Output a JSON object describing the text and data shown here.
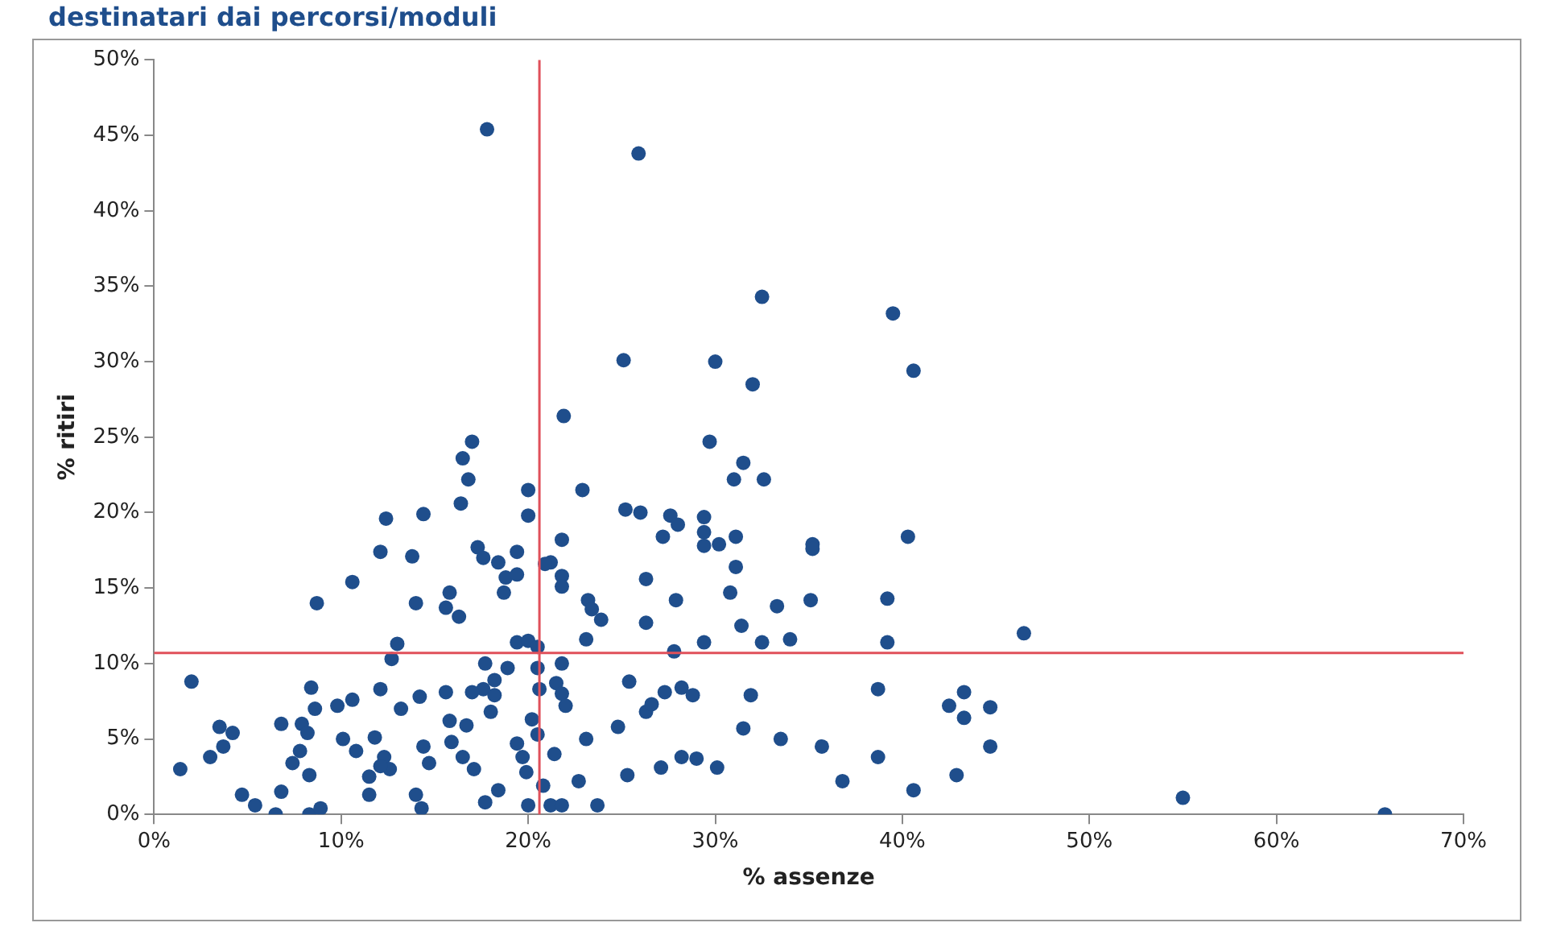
{
  "chart_data": {
    "type": "scatter",
    "title": "destinatari dai percorsi/moduli",
    "xlabel": "% assenze",
    "ylabel": "% ritiri",
    "xlim": [
      0,
      70
    ],
    "xticks": [
      {
        "value": 0,
        "label": "0%"
      },
      {
        "value": 10,
        "label": "10%"
      },
      {
        "value": 20,
        "label": "20%"
      },
      {
        "value": 30,
        "label": "30%"
      },
      {
        "value": 40,
        "label": "40%"
      },
      {
        "value": 50,
        "label": "50%"
      },
      {
        "value": 60,
        "label": "60%"
      },
      {
        "value": 70,
        "label": "70%"
      }
    ],
    "ylim": [
      0,
      50
    ],
    "yticks": [
      {
        "value": 0,
        "label": "0%"
      },
      {
        "value": 5,
        "label": "5%"
      },
      {
        "value": 10,
        "label": "10%"
      },
      {
        "value": 15,
        "label": "15%"
      },
      {
        "value": 20,
        "label": "20%"
      },
      {
        "value": 25,
        "label": "25%"
      },
      {
        "value": 30,
        "label": "30%"
      },
      {
        "value": 35,
        "label": "35%"
      },
      {
        "value": 40,
        "label": "40%"
      },
      {
        "value": 45,
        "label": "45%"
      },
      {
        "value": 50,
        "label": "50%"
      }
    ],
    "grid": false,
    "legend": false,
    "marker": "circle",
    "ref_lines": [
      {
        "axis": "x",
        "value": 20.6,
        "color": "#e0505a"
      },
      {
        "axis": "y",
        "value": 10.7,
        "color": "#e0505a"
      }
    ],
    "series": [
      {
        "color": "#1f4e8c",
        "x": [
          17.8,
          21.9,
          17.0,
          16.5,
          16.8,
          20.0,
          22.9,
          25.9,
          32.5,
          39.5,
          25.1,
          30.0,
          32.0,
          40.6,
          29.7,
          31.5,
          31.0,
          32.6,
          25.2,
          26.0,
          27.6,
          28.0,
          27.2,
          29.4,
          29.4,
          29.4,
          30.2,
          31.1,
          21.8,
          35.2,
          35.2,
          40.3,
          31.1,
          26.3,
          21.2,
          21.8,
          21.8,
          30.8,
          35.1,
          39.2,
          27.9,
          23.2,
          23.4,
          23.9,
          33.3,
          26.3,
          31.4,
          23.1,
          29.4,
          32.5,
          34.0,
          39.2,
          46.5,
          27.8,
          21.8,
          21.5,
          21.8,
          22.0,
          25.4,
          27.3,
          28.2,
          28.8,
          26.3,
          26.6,
          31.9,
          38.7,
          42.5,
          43.3,
          43.3,
          44.7,
          24.8,
          23.1,
          31.5,
          33.5,
          35.7,
          38.7,
          44.7,
          28.2,
          29.0,
          27.1,
          30.1,
          25.3,
          22.7,
          36.8,
          42.9,
          40.6,
          23.7,
          21.2,
          21.8,
          55.0,
          65.8,
          20.0,
          12.4,
          14.4,
          16.4,
          12.1,
          13.8,
          17.3,
          17.6,
          18.4,
          19.4,
          18.8,
          19.4,
          18.7,
          20.9,
          10.6,
          8.7,
          14.0,
          15.8,
          15.6,
          16.3,
          13.0,
          12.7,
          19.4,
          20.0,
          20.5,
          2.0,
          17.7,
          18.2,
          17.6,
          18.2,
          18.0,
          18.9,
          20.5,
          20.6,
          20.2,
          20.5,
          19.4,
          19.7,
          19.9,
          21.4,
          20.0,
          20.8,
          12.1,
          13.2,
          14.2,
          15.6,
          17.0,
          8.4,
          8.6,
          9.8,
          10.6,
          15.8,
          16.7,
          3.5,
          4.2,
          3.7,
          3.0,
          1.4,
          6.8,
          7.9,
          8.2,
          7.8,
          7.4,
          6.8,
          8.3,
          10.1,
          10.8,
          11.8,
          12.3,
          12.6,
          11.5,
          11.5,
          14.4,
          14.7,
          14.0,
          14.3,
          15.9,
          16.5,
          17.1,
          17.7,
          18.4,
          4.7,
          5.4,
          6.5,
          8.3,
          8.9,
          12.1
        ],
        "values": [
          45.4,
          26.4,
          24.7,
          23.6,
          22.2,
          21.5,
          21.5,
          43.8,
          34.3,
          33.2,
          30.1,
          30.0,
          28.5,
          29.4,
          24.7,
          23.3,
          22.2,
          22.2,
          20.2,
          20.0,
          19.8,
          19.2,
          18.4,
          19.7,
          18.7,
          17.8,
          17.9,
          18.4,
          18.2,
          17.9,
          17.6,
          18.4,
          16.4,
          15.6,
          16.7,
          15.8,
          15.1,
          14.7,
          14.2,
          14.3,
          14.2,
          14.2,
          13.6,
          12.9,
          13.8,
          12.7,
          12.5,
          11.6,
          11.4,
          11.4,
          11.6,
          11.4,
          12.0,
          10.8,
          10.0,
          8.7,
          8.0,
          7.2,
          8.8,
          8.1,
          8.4,
          7.9,
          6.8,
          7.3,
          7.9,
          8.3,
          7.2,
          8.1,
          6.4,
          7.1,
          5.8,
          5.0,
          5.7,
          5.0,
          4.5,
          3.8,
          4.5,
          3.8,
          3.7,
          3.1,
          3.1,
          2.6,
          2.2,
          2.2,
          2.6,
          1.6,
          0.6,
          0.6,
          0.6,
          1.1,
          0,
          19.8,
          19.6,
          19.9,
          20.6,
          17.4,
          17.1,
          17.7,
          17.0,
          16.7,
          17.4,
          15.7,
          15.9,
          14.7,
          16.6,
          15.4,
          14.0,
          14.0,
          14.7,
          13.7,
          13.1,
          11.3,
          10.3,
          11.4,
          11.5,
          11.1,
          8.8,
          10.0,
          8.9,
          8.3,
          7.9,
          6.8,
          9.7,
          9.7,
          8.3,
          6.3,
          5.3,
          4.7,
          3.8,
          2.8,
          4.0,
          0.6,
          1.9,
          8.3,
          7.0,
          7.8,
          8.1,
          8.1,
          8.4,
          7.0,
          7.2,
          7.6,
          6.2,
          5.9,
          5.8,
          5.4,
          4.5,
          3.8,
          3.0,
          6.0,
          6.0,
          5.4,
          4.2,
          3.4,
          1.5,
          2.6,
          5.0,
          4.2,
          5.1,
          3.8,
          3.0,
          2.5,
          1.3,
          4.5,
          3.4,
          1.3,
          0.4,
          4.8,
          3.8,
          3.0,
          0.8,
          1.6,
          1.3,
          0.6,
          0.0,
          0.0,
          0.4,
          3.2
        ]
      }
    ]
  }
}
